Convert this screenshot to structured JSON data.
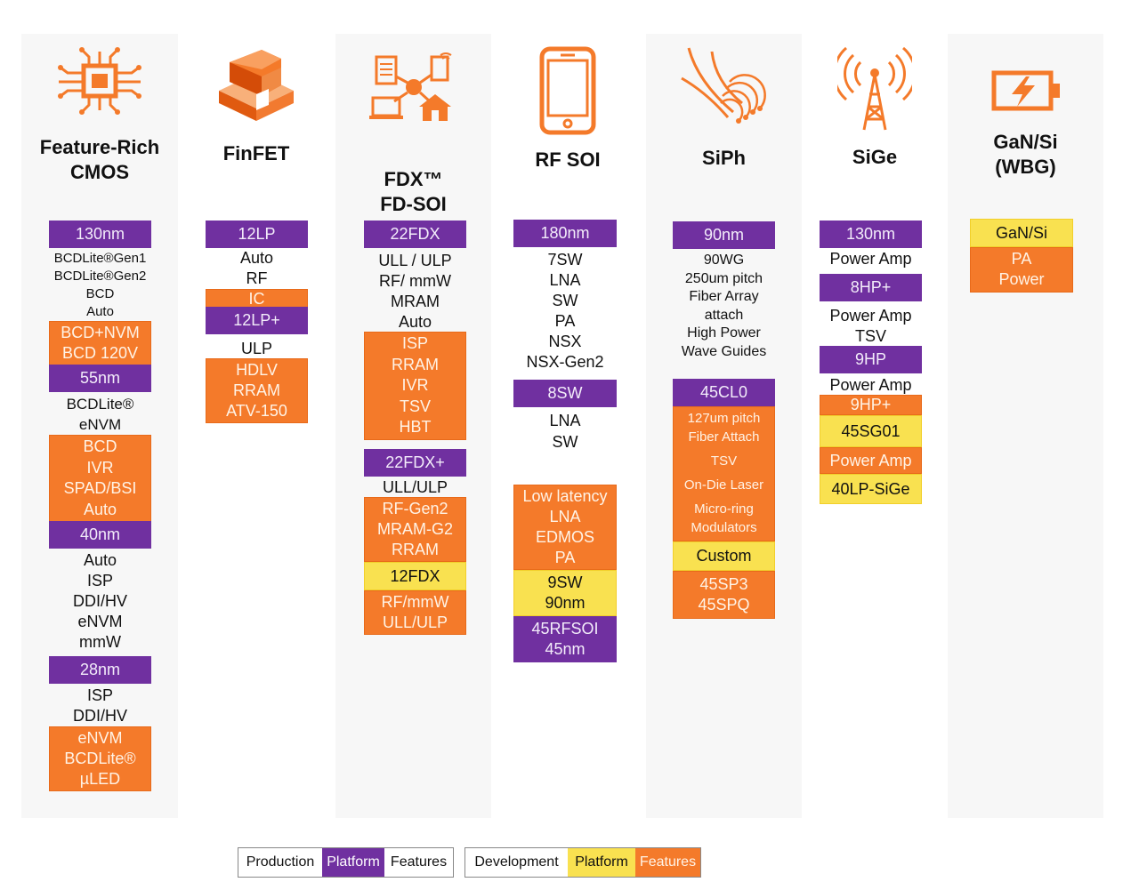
{
  "colors": {
    "purple": "#7030a0",
    "orange": "#f47a2a",
    "yellow": "#f9e150"
  },
  "columns": [
    {
      "title1": "Feature-Rich",
      "title2": "CMOS",
      "icon": "cpu-chip-icon",
      "items": [
        "130nm",
        "BCDLite®Gen1",
        "BCDLite®Gen2",
        "BCD",
        "Auto",
        "BCD+NVM",
        "BCD 120V",
        "55nm",
        "BCDLite®",
        "eNVM",
        "BCD",
        "IVR",
        "SPAD/BSI",
        "Auto",
        "40nm",
        "Auto",
        "ISP",
        "DDI/HV",
        "eNVM",
        "mmW",
        "28nm",
        "ISP",
        "DDI/HV",
        "eNVM",
        "BCDLite®",
        "µLED"
      ]
    },
    {
      "title1": "FinFET",
      "title2": "",
      "icon": "finfet-blocks-icon",
      "items": [
        "12LP",
        "Auto",
        "RF",
        "IC",
        "12LP+",
        "ULP",
        "HDLV",
        "RRAM",
        "ATV-150"
      ]
    },
    {
      "title1": "FDX™",
      "title2": "FD-SOI",
      "icon": "connected-devices-icon",
      "items": [
        "22FDX",
        "ULL / ULP",
        "RF/ mmW",
        "MRAM",
        "Auto",
        "ISP",
        "RRAM",
        "IVR",
        "TSV",
        "HBT",
        "22FDX+",
        "ULL/ULP",
        "RF-Gen2",
        "MRAM-G2",
        "RRAM",
        "12FDX",
        "RF/mmW",
        "ULL/ULP"
      ]
    },
    {
      "title1": "RF SOI",
      "title2": "",
      "icon": "smartphone-icon",
      "items": [
        "180nm",
        "7SW",
        "LNA",
        "SW",
        "PA",
        "NSX",
        "NSX-Gen2",
        "8SW",
        "LNA",
        "SW",
        "Low latency",
        "LNA",
        "EDMOS",
        "PA",
        "9SW",
        "90nm",
        "45RFSOI",
        "45nm"
      ]
    },
    {
      "title1": "SiPh",
      "title2": "",
      "icon": "fiber-optics-icon",
      "items": [
        "90nm",
        "90WG",
        "250um pitch",
        "Fiber Array",
        "attach",
        "High Power",
        "Wave Guides",
        "45CL0",
        "127um pitch",
        "Fiber Attach",
        "TSV",
        "On-Die Laser",
        "Micro-ring",
        "Modulators",
        "Custom",
        "45SP3",
        "45SPQ"
      ]
    },
    {
      "title1": "SiGe",
      "title2": "",
      "icon": "antenna-tower-icon",
      "items": [
        "130nm",
        "Power Amp",
        "8HP+",
        "Power Amp",
        "TSV",
        "9HP",
        "Power Amp",
        "9HP+",
        "45SG01",
        "Power Amp",
        "40LP-SiGe"
      ]
    },
    {
      "title1": "GaN/Si",
      "title2": "(WBG)",
      "icon": "battery-charging-icon",
      "items": [
        "GaN/Si",
        "PA",
        "Power"
      ]
    }
  ],
  "legend": {
    "production": {
      "label": "Production",
      "platform": "Platform",
      "features": "Features"
    },
    "development": {
      "label": "Development",
      "platform": "Platform",
      "features": "Features"
    }
  }
}
